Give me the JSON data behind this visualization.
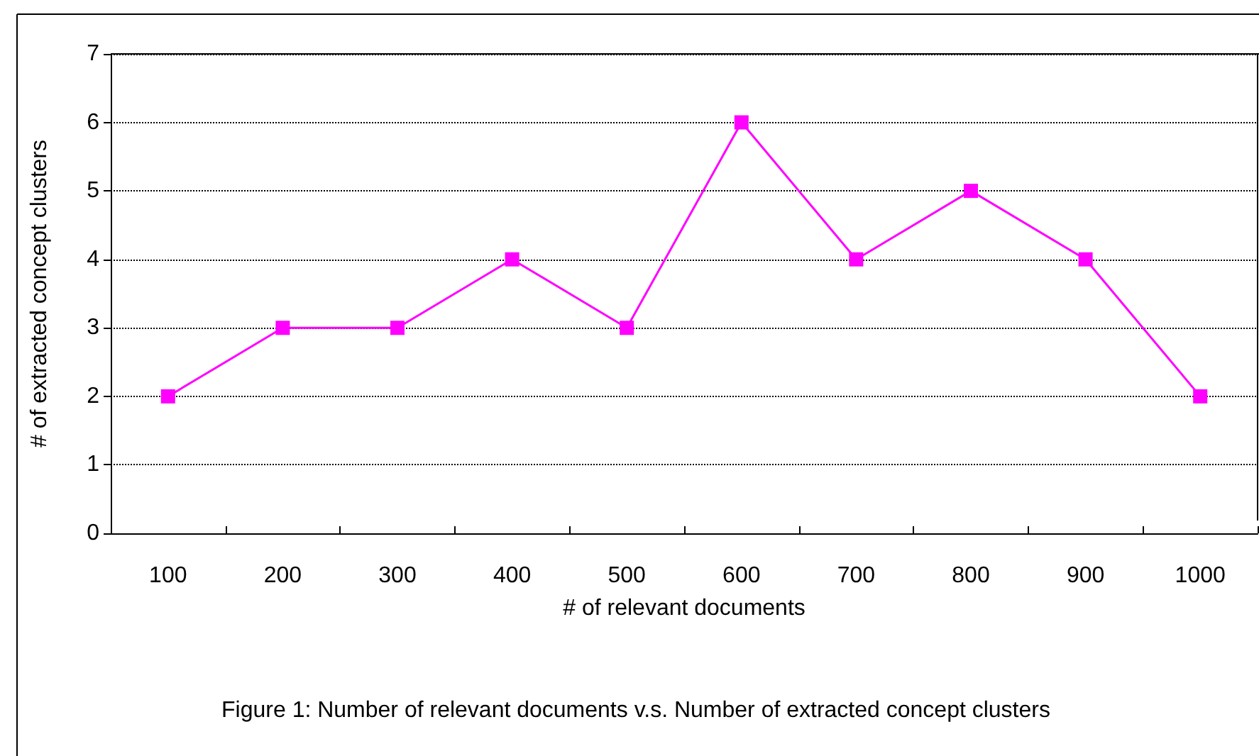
{
  "chart_data": {
    "type": "line",
    "xlabel": "# of relevant documents",
    "ylabel": "# of extracted concept clusters",
    "categories": [
      "100",
      "200",
      "300",
      "400",
      "500",
      "600",
      "700",
      "800",
      "900",
      "1000"
    ],
    "series": [
      {
        "color": "#ff00ff",
        "values": [
          2,
          3,
          3,
          4,
          3,
          6,
          4,
          5,
          4,
          2
        ]
      }
    ],
    "ylim": [
      0,
      7
    ],
    "yticks": [
      0,
      1,
      2,
      3,
      4,
      5,
      6,
      7
    ],
    "grid": "y",
    "marker": "square",
    "line_style": "solid",
    "annotations": [
      "Figure 1: Number of relevant documents v.s. Number of extracted concept clusters"
    ]
  }
}
